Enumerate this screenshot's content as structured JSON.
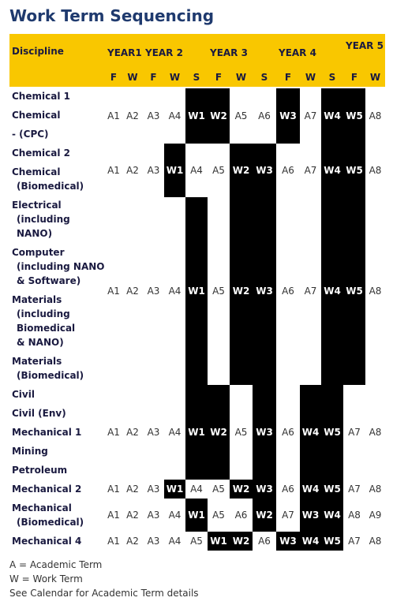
{
  "header": {
    "title": "Work Term Sequencing"
  },
  "table": {
    "discipline_header": "Discipline",
    "years": [
      "YEAR1",
      "YEAR 2",
      "YEAR 3",
      "YEAR 4",
      "YEAR 5"
    ],
    "terms": [
      "F",
      "W",
      "F",
      "W",
      "S",
      "F",
      "W",
      "S",
      "F",
      "W",
      "S",
      "F",
      "W"
    ],
    "groups": [
      {
        "disciplines": [
          [
            "Chemical 1"
          ],
          [
            "Chemical"
          ],
          [
            "- (CPC)"
          ]
        ],
        "sequence": [
          "A1",
          "A2",
          "A3",
          "A4",
          "W1",
          "W2",
          "A5",
          "A6",
          "W3",
          "A7",
          "W4",
          "W5",
          "A8"
        ]
      },
      {
        "disciplines": [
          [
            "Chemical 2"
          ],
          [
            "Chemical",
            "(Biomedical)"
          ]
        ],
        "sequence": [
          "A1",
          "A2",
          "A3",
          "W1",
          "A4",
          "A5",
          "W2",
          "W3",
          "A6",
          "A7",
          "W4",
          "W5",
          "A8"
        ]
      },
      {
        "disciplines": [
          [
            "Electrical",
            "(including",
            "NANO)"
          ],
          [
            "Computer",
            "(including NANO",
            "& Software)"
          ],
          [
            "Materials",
            "(including",
            "Biomedical",
            "& NANO)"
          ],
          [
            "Materials",
            "(Biomedical)"
          ]
        ],
        "sequence": [
          "A1",
          "A2",
          "A3",
          "A4",
          "W1",
          "A5",
          "W2",
          "W3",
          "A6",
          "A7",
          "W4",
          "W5",
          "A8"
        ]
      },
      {
        "disciplines": [
          [
            "Civil"
          ],
          [
            "Civil (Env)"
          ],
          [
            "Mechanical 1"
          ],
          [
            "Mining"
          ],
          [
            "Petroleum"
          ]
        ],
        "sequence": [
          "A1",
          "A2",
          "A3",
          "A4",
          "W1",
          "W2",
          "A5",
          "W3",
          "A6",
          "W4",
          "W5",
          "A7",
          "A8"
        ]
      },
      {
        "disciplines": [
          [
            "Mechanical 2"
          ]
        ],
        "sequence": [
          "A1",
          "A2",
          "A3",
          "W1",
          "A4",
          "A5",
          "W2",
          "W3",
          "A6",
          "W4",
          "W5",
          "A7",
          "A8"
        ]
      },
      {
        "disciplines": [
          [
            "Mechanical",
            "(Biomedical)"
          ]
        ],
        "sequence": [
          "A1",
          "A2",
          "A3",
          "A4",
          "W1",
          "A5",
          "A6",
          "W2",
          "A7",
          "W3",
          "W4",
          "A8",
          "A9"
        ]
      },
      {
        "disciplines": [
          [
            "Mechanical 4"
          ]
        ],
        "sequence": [
          "A1",
          "A2",
          "A3",
          "A4",
          "A5",
          "W1",
          "W2",
          "A6",
          "W3",
          "W4",
          "W5",
          "A7",
          "A8"
        ]
      }
    ]
  },
  "footnotes": [
    "A = Academic Term",
    "W = Work Term",
    "See Calendar for Academic Term details"
  ]
}
